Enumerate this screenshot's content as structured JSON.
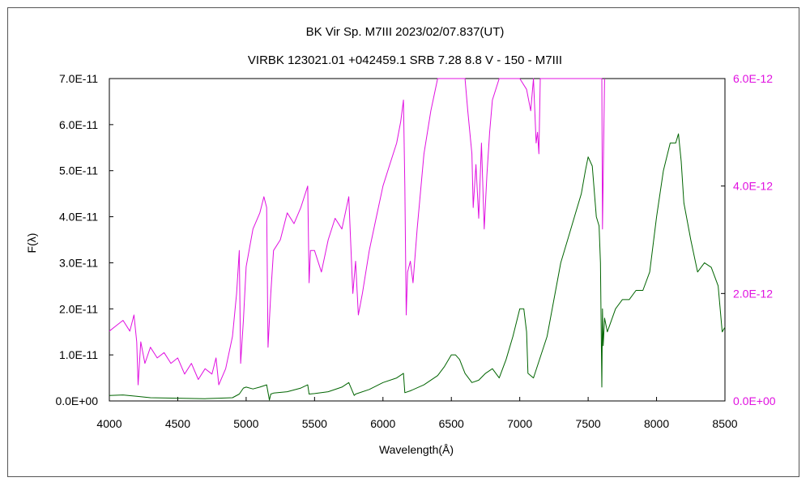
{
  "chart_data": {
    "type": "line",
    "title": "BK Vir    Sp. M7III    2023/02/07.837(UT)",
    "subtitle": "VIRBK 123021.01 +042459.1 SRB 7.28 8.8 V - 150 - M7III",
    "xlabel": "Wavelength(Å)",
    "ylabel": "F(λ)",
    "xlim": [
      4000,
      8500
    ],
    "ylim": [
      0,
      7e-11
    ],
    "y2lim": [
      0,
      6e-12
    ],
    "x_ticks": [
      "4000",
      "4500",
      "5000",
      "5500",
      "6000",
      "6500",
      "7000",
      "7500",
      "8000",
      "8500"
    ],
    "y_ticks": [
      "0.0E+00",
      "1.0E-11",
      "2.0E-11",
      "3.0E-11",
      "4.0E-11",
      "5.0E-11",
      "6.0E-11",
      "7.0E-11"
    ],
    "y2_ticks": [
      "0.0E+00",
      "2.0E-12",
      "4.0E-12",
      "6.0E-12"
    ],
    "grid": false,
    "colors": {
      "primary": "#006400",
      "secondary": "#e010e0"
    },
    "series": [
      {
        "axis": "left",
        "color": "#006400",
        "x": [
          4000,
          4100,
          4200,
          4300,
          4500,
          4700,
          4800,
          4900,
          4950,
          4980,
          5000,
          5050,
          5100,
          5150,
          5170,
          5180,
          5200,
          5300,
          5400,
          5450,
          5460,
          5500,
          5600,
          5700,
          5750,
          5790,
          5800,
          5900,
          6000,
          6100,
          6150,
          6160,
          6200,
          6300,
          6400,
          6450,
          6500,
          6530,
          6560,
          6600,
          6650,
          6700,
          6750,
          6800,
          6850,
          6900,
          6950,
          7000,
          7030,
          7050,
          7060,
          7100,
          7200,
          7300,
          7350,
          7400,
          7450,
          7480,
          7500,
          7530,
          7560,
          7580,
          7590,
          7600,
          7605,
          7610,
          7620,
          7640,
          7700,
          7750,
          7800,
          7850,
          7900,
          7950,
          8000,
          8050,
          8100,
          8140,
          8160,
          8180,
          8200,
          8250,
          8300,
          8350,
          8400,
          8450,
          8480,
          8500
        ],
        "y": [
          1.2e-12,
          1.3e-12,
          1e-12,
          7e-13,
          6e-13,
          5e-13,
          6e-13,
          7e-13,
          1.5e-12,
          2.8e-12,
          3e-12,
          2.6e-12,
          3e-12,
          3.5e-12,
          2e-13,
          1.5e-12,
          1.7e-12,
          2e-12,
          2.8e-12,
          3.5e-12,
          1.5e-12,
          1.6e-12,
          2e-12,
          3e-12,
          4e-12,
          1.2e-12,
          1.5e-12,
          2.5e-12,
          4e-12,
          5e-12,
          6e-12,
          1.8e-12,
          2.2e-12,
          3.5e-12,
          5.5e-12,
          7.5e-12,
          1e-11,
          1e-11,
          9e-12,
          6e-12,
          4e-12,
          4.5e-12,
          6e-12,
          7e-12,
          5e-12,
          9e-12,
          1.4e-11,
          2e-11,
          2e-11,
          1.5e-11,
          6e-12,
          5e-12,
          1.4e-11,
          3e-11,
          3.5e-11,
          4e-11,
          4.5e-11,
          5e-11,
          5.3e-11,
          5.1e-11,
          4e-11,
          3.8e-11,
          3e-11,
          3e-12,
          2e-11,
          1.2e-11,
          1.8e-11,
          1.5e-11,
          2e-11,
          2.2e-11,
          2.2e-11,
          2.4e-11,
          2.4e-11,
          2.8e-11,
          4e-11,
          5e-11,
          5.6e-11,
          5.6e-11,
          5.8e-11,
          5.2e-11,
          4.3e-11,
          3.5e-11,
          2.8e-11,
          3e-11,
          2.9e-11,
          2.5e-11,
          1.5e-11,
          1.6e-11
        ]
      },
      {
        "axis": "right",
        "color": "#e010e0",
        "x": [
          4000,
          4050,
          4100,
          4150,
          4180,
          4200,
          4210,
          4230,
          4260,
          4300,
          4350,
          4400,
          4450,
          4500,
          4550,
          4600,
          4650,
          4700,
          4750,
          4780,
          4800,
          4850,
          4900,
          4930,
          4950,
          4960,
          4980,
          5000,
          5050,
          5100,
          5130,
          5150,
          5160,
          5170,
          5180,
          5200,
          5250,
          5300,
          5350,
          5400,
          5450,
          5460,
          5470,
          5500,
          5550,
          5600,
          5650,
          5700,
          5750,
          5780,
          5800,
          5820,
          5850,
          5900,
          5950,
          6000,
          6050,
          6100,
          6130,
          6150,
          6160,
          6170,
          6180,
          6200,
          6220,
          6250,
          6300,
          6350,
          6400,
          6420,
          6450,
          6500,
          6550,
          6600,
          6620,
          6650,
          6660,
          6680,
          6700,
          6720,
          6740,
          6760,
          6780,
          6800,
          6850,
          6900,
          6950,
          7000,
          7050,
          7080,
          7100,
          7120,
          7130,
          7140,
          7150,
          7200,
          7300,
          7400,
          7500,
          7550,
          7580,
          7590,
          7600,
          7605,
          7620
        ],
        "y": [
          1.3e-12,
          1.4e-12,
          1.5e-12,
          1.3e-12,
          1.6e-12,
          1.1e-12,
          3e-13,
          1.1e-12,
          7e-13,
          1e-12,
          8e-13,
          9e-13,
          7e-13,
          8e-13,
          5e-13,
          7e-13,
          4e-13,
          6e-13,
          5e-13,
          8e-13,
          3e-13,
          6e-13,
          1.2e-12,
          2e-12,
          2.8e-12,
          7e-13,
          1.5e-12,
          2.5e-12,
          3.2e-12,
          3.5e-12,
          3.8e-12,
          3.6e-12,
          1e-12,
          1.5e-12,
          2e-12,
          2.8e-12,
          3e-12,
          3.5e-12,
          3.3e-12,
          3.6e-12,
          4e-12,
          2.2e-12,
          2.8e-12,
          2.8e-12,
          2.4e-12,
          3e-12,
          3.4e-12,
          3.2e-12,
          3.8e-12,
          2e-12,
          2.6e-12,
          1.6e-12,
          2e-12,
          2.8e-12,
          3.4e-12,
          4e-12,
          4.4e-12,
          4.8e-12,
          5.2e-12,
          5.6e-12,
          4e-12,
          1.6e-12,
          2.4e-12,
          2.6e-12,
          2.2e-12,
          3.2e-12,
          4.6e-12,
          5.4e-12,
          6e-12,
          6e-12,
          6e-12,
          6e-12,
          6e-12,
          6e-12,
          5.4e-12,
          4.6e-12,
          3.6e-12,
          4.4e-12,
          3.4e-12,
          4.8e-12,
          3.2e-12,
          4.2e-12,
          5e-12,
          5.6e-12,
          6e-12,
          6e-12,
          6e-12,
          6e-12,
          5.8e-12,
          5.4e-12,
          6e-12,
          4.8e-12,
          5e-12,
          4.6e-12,
          6e-12,
          6e-12,
          6e-12,
          6e-12,
          6e-12,
          6e-12,
          6e-12,
          6e-12,
          6e-12,
          3.2e-12,
          6e-12
        ]
      }
    ]
  }
}
